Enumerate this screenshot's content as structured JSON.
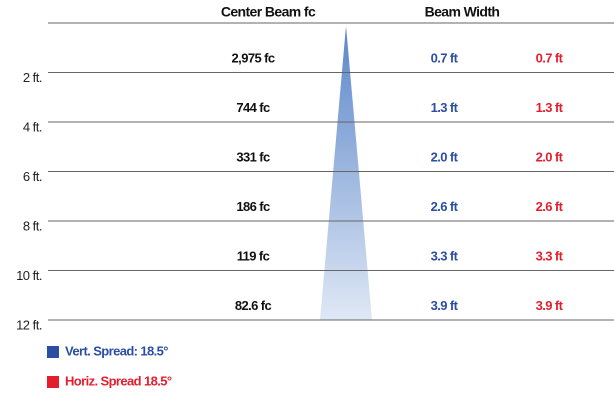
{
  "header": {
    "center_beam": "Center Beam fc",
    "beam_width": "Beam Width"
  },
  "rows": [
    {
      "distance": "2 ft.",
      "fc": "2,975 fc",
      "vert": "0.7 ft",
      "horiz": "0.7 ft"
    },
    {
      "distance": "4 ft.",
      "fc": "744 fc",
      "vert": "1.3 ft",
      "horiz": "1.3 ft"
    },
    {
      "distance": "6 ft.",
      "fc": "331 fc",
      "vert": "2.0 ft",
      "horiz": "2.0 ft"
    },
    {
      "distance": "8 ft.",
      "fc": "186 fc",
      "vert": "2.6 ft",
      "horiz": "2.6 ft"
    },
    {
      "distance": "10 ft.",
      "fc": "119 fc",
      "vert": "3.3 ft",
      "horiz": "3.3 ft"
    },
    {
      "distance": "12 ft.",
      "fc": "82.6 fc",
      "vert": "3.9 ft",
      "horiz": "3.9 ft"
    }
  ],
  "legend": [
    {
      "label": "Vert. Spread: 18.5°",
      "color": "#2b4ea3"
    },
    {
      "label": "Horiz. Spread 18.5°",
      "color": "#e41f2d"
    }
  ]
}
